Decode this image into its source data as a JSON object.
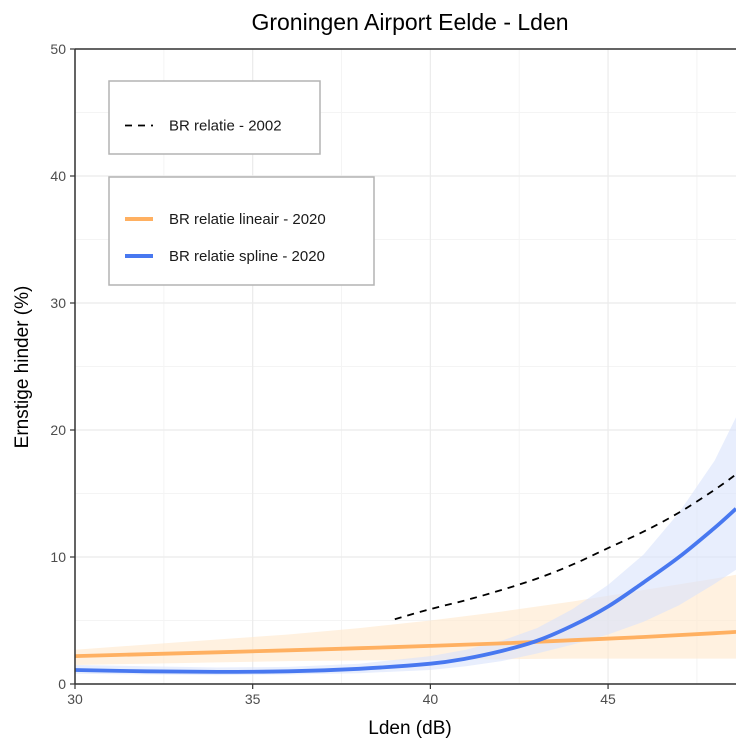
{
  "chart_data": {
    "type": "line",
    "title": "Groningen Airport Eelde - Lden",
    "xlabel": "Lden (dB)",
    "ylabel": "Ernstige hinder (%)",
    "xlim": [
      30,
      48.6
    ],
    "ylim": [
      0,
      50
    ],
    "x_ticks": [
      30,
      35,
      40,
      45
    ],
    "y_ticks": [
      0,
      10,
      20,
      30,
      40,
      50
    ],
    "grid": true,
    "legend_position": "top-left",
    "legends": [
      {
        "entries": [
          {
            "series": "BR relatie - 2002",
            "label": "BR relatie - 2002"
          }
        ]
      },
      {
        "entries": [
          {
            "series": "BR relatie lineair - 2020",
            "label": "BR relatie lineair - 2020"
          },
          {
            "series": "BR relatie spline - 2020",
            "label": "BR relatie spline - 2020"
          }
        ]
      }
    ],
    "series": [
      {
        "name": "BR relatie - 2002",
        "style": "dashed",
        "color": "#000000",
        "x": [
          39,
          40,
          41,
          42,
          43,
          44,
          45,
          46,
          47,
          48,
          48.6
        ],
        "y": [
          5.1,
          5.9,
          6.6,
          7.4,
          8.3,
          9.4,
          10.7,
          12.0,
          13.5,
          15.3,
          16.5
        ]
      },
      {
        "name": "BR relatie lineair - 2020",
        "style": "solid",
        "color": "#ffb061",
        "band_color": "#ffe8cc",
        "x": [
          30,
          32,
          34,
          36,
          38,
          40,
          42,
          44,
          46,
          48,
          48.6
        ],
        "y": [
          2.2,
          2.35,
          2.5,
          2.65,
          2.82,
          3.0,
          3.2,
          3.45,
          3.7,
          4.0,
          4.1
        ],
        "lower": [
          1.5,
          1.6,
          1.7,
          1.8,
          1.85,
          1.9,
          1.95,
          2.0,
          2.0,
          2.0,
          2.0
        ],
        "upper": [
          2.7,
          3.1,
          3.5,
          3.9,
          4.4,
          5.0,
          5.7,
          6.5,
          7.4,
          8.3,
          8.6
        ]
      },
      {
        "name": "BR relatie spline - 2020",
        "style": "solid",
        "color": "#4878f0",
        "band_color": "#d9e2fc",
        "x": [
          30,
          32,
          34,
          36,
          38,
          40,
          41,
          42,
          43,
          44,
          45,
          46,
          47,
          48,
          48.6
        ],
        "y": [
          1.1,
          1.0,
          0.95,
          1.0,
          1.2,
          1.6,
          2.0,
          2.6,
          3.4,
          4.6,
          6.1,
          8.0,
          10.0,
          12.3,
          13.8
        ],
        "lower": [
          0.8,
          0.75,
          0.7,
          0.75,
          0.85,
          1.1,
          1.4,
          1.8,
          2.4,
          3.1,
          3.9,
          4.9,
          6.2,
          7.9,
          9.0
        ],
        "upper": [
          1.5,
          1.4,
          1.3,
          1.35,
          1.6,
          2.2,
          2.7,
          3.4,
          4.4,
          5.9,
          7.8,
          10.2,
          13.5,
          17.6,
          21.0
        ]
      }
    ]
  }
}
